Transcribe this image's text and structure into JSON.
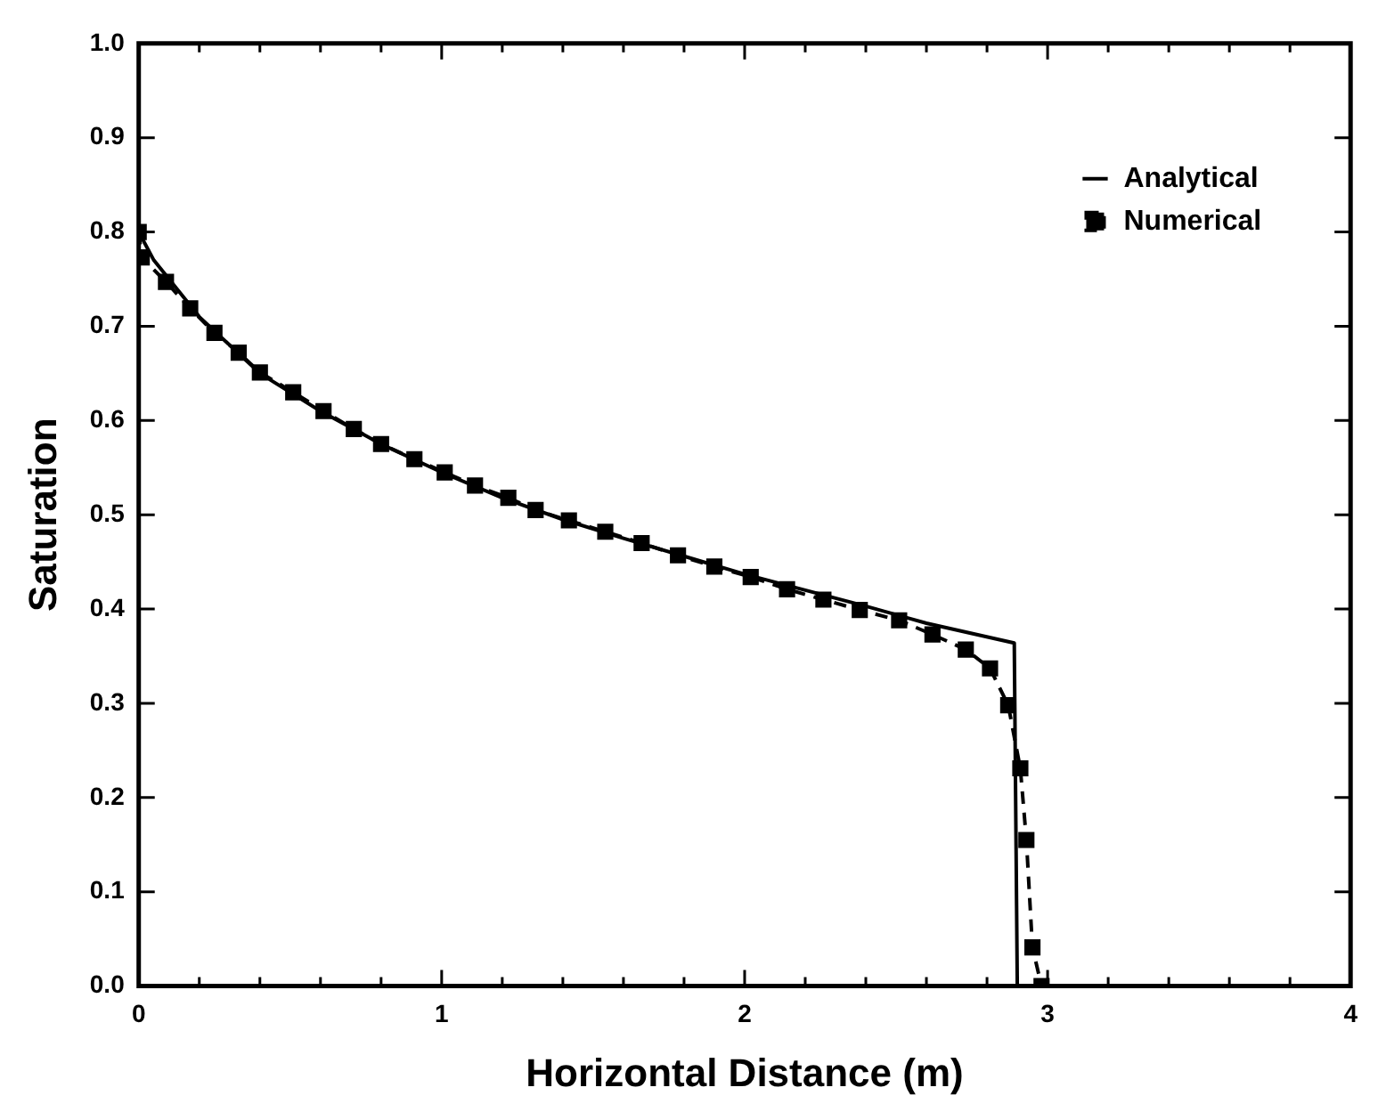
{
  "chart_data": {
    "type": "line",
    "xlabel": "Horizontal Distance (m)",
    "ylabel": "Saturation",
    "xlim": [
      0,
      4
    ],
    "ylim": [
      0,
      1
    ],
    "xticks": [
      0,
      {
        "value": 0.2,
        "label": null
      },
      {
        "value": 0.4,
        "label": null
      },
      {
        "value": 0.6,
        "label": null
      },
      {
        "value": 0.8,
        "label": null
      },
      1,
      {
        "value": 1.2,
        "label": null
      },
      {
        "value": 1.4,
        "label": null
      },
      {
        "value": 1.6,
        "label": null
      },
      {
        "value": 1.8,
        "label": null
      },
      2,
      {
        "value": 2.2,
        "label": null
      },
      {
        "value": 2.4,
        "label": null
      },
      {
        "value": 2.6,
        "label": null
      },
      {
        "value": 2.8,
        "label": null
      },
      3,
      {
        "value": 3.2,
        "label": null
      },
      {
        "value": 3.4,
        "label": null
      },
      {
        "value": 3.6,
        "label": null
      },
      {
        "value": 3.8,
        "label": null
      },
      4
    ],
    "yticks": [
      {
        "value": 0,
        "label": "0.0"
      },
      0.1,
      0.2,
      0.3,
      0.4,
      0.5,
      0.6,
      0.7,
      0.8,
      0.9,
      {
        "value": 1,
        "label": "1.0"
      }
    ],
    "grid": false,
    "legend": "top right",
    "series": [
      {
        "name": "Analytical",
        "color": "#000000",
        "marker": "none",
        "line_style": "solid",
        "x": [
          0,
          0.05,
          0.2,
          0.4,
          0.6,
          0.8,
          1.0,
          1.2,
          1.4,
          1.6,
          1.8,
          2.0,
          2.2,
          2.4,
          2.6,
          2.89,
          2.9
        ],
        "values": [
          0.8,
          0.77,
          0.71,
          0.65,
          0.61,
          0.575,
          0.545,
          0.518,
          0.495,
          0.475,
          0.456,
          0.437,
          0.42,
          0.403,
          0.385,
          0.364,
          0
        ]
      },
      {
        "name": "Numerical",
        "color": "#000000",
        "marker": "square",
        "line_style": "dashed",
        "x": [
          0,
          0.01,
          0.09,
          0.17,
          0.25,
          0.33,
          0.4,
          0.51,
          0.61,
          0.71,
          0.8,
          0.91,
          1.01,
          1.11,
          1.22,
          1.31,
          1.42,
          1.54,
          1.66,
          1.78,
          1.9,
          2.02,
          2.14,
          2.26,
          2.38,
          2.51,
          2.62,
          2.73,
          2.81,
          2.87,
          2.91,
          2.93,
          2.95,
          2.98
        ],
        "values": [
          0.8,
          0.773,
          0.747,
          0.719,
          0.693,
          0.672,
          0.651,
          0.63,
          0.61,
          0.591,
          0.575,
          0.559,
          0.545,
          0.531,
          0.518,
          0.505,
          0.494,
          0.482,
          0.47,
          0.457,
          0.445,
          0.434,
          0.421,
          0.41,
          0.399,
          0.388,
          0.373,
          0.357,
          0.337,
          0.298,
          0.231,
          0.155,
          0.041,
          0
        ]
      }
    ]
  }
}
